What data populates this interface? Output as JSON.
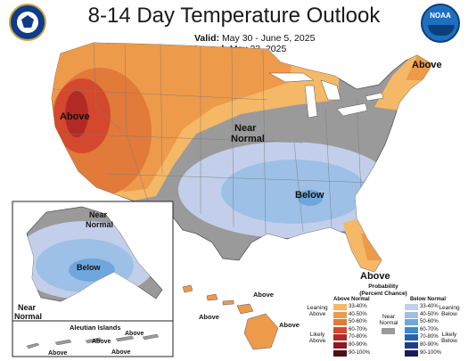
{
  "header": {
    "title": "8-14 Day Temperature Outlook",
    "valid_label": "Valid:",
    "valid_value": "May 30 - June 5, 2025",
    "issued_label": "Issued:",
    "issued_value": "May 22, 2025"
  },
  "logos": {
    "left_seal": "department-of-commerce-seal",
    "right_logo": "NOAA"
  },
  "map_labels": {
    "conus_above_west": "Above",
    "conus_above_northeast": "Above",
    "conus_near_normal_1": "Near",
    "conus_near_normal_2": "Normal",
    "conus_below": "Below",
    "conus_above_florida": "Above",
    "alaska_near_normal_1": "Near",
    "alaska_near_normal_2": "Normal",
    "alaska_below": "Below",
    "alaska_sw_near_1": "Near",
    "alaska_sw_near_2": "Normal",
    "hawaii_above_1": "Above",
    "hawaii_above_2": "Above",
    "hawaii_above_3": "Above",
    "aleutian_title": "Aleutian Islands",
    "aleutian_above_1": "Above",
    "aleutian_above_2": "Above",
    "aleutian_above_3": "Above",
    "aleutian_above_4": "Above"
  },
  "legend": {
    "title_1": "Probability",
    "title_2": "(Percent Chance)",
    "above_header": "Above Normal",
    "below_header": "Below Normal",
    "leaning_above_1": "Leaning",
    "leaning_above_2": "Above",
    "likely_above_1": "Likely",
    "likely_above_2": "Above",
    "leaning_below_1": "Leaning",
    "leaning_below_2": "Below",
    "likely_below_1": "Likely",
    "likely_below_2": "Below",
    "near_normal_1": "Near",
    "near_normal_2": "Normal",
    "above_bins": [
      {
        "label": "33-40%",
        "color": "#f5b867"
      },
      {
        "label": "40-50%",
        "color": "#ee9a4b"
      },
      {
        "label": "50-60%",
        "color": "#e27a3a"
      },
      {
        "label": "60-70%",
        "color": "#d4492d"
      },
      {
        "label": "70-80%",
        "color": "#b32a24"
      },
      {
        "label": "80-90%",
        "color": "#8a1a1f"
      },
      {
        "label": "90-100%",
        "color": "#4e0f15"
      }
    ],
    "below_bins": [
      {
        "label": "33-40%",
        "color": "#c3cfea"
      },
      {
        "label": "40-50%",
        "color": "#9dc0e6"
      },
      {
        "label": "50-60%",
        "color": "#6fa6dc"
      },
      {
        "label": "60-70%",
        "color": "#3f88cc"
      },
      {
        "label": "70-80%",
        "color": "#2563ad"
      },
      {
        "label": "80-90%",
        "color": "#1d3e86"
      },
      {
        "label": "90-100%",
        "color": "#141f55"
      }
    ],
    "near_color": "#9a9a9a"
  },
  "colors": {
    "near_normal": "#9a9a9a",
    "above_33_40": "#f5b867",
    "above_40_50": "#ee9a4b",
    "above_50_60": "#e27a3a",
    "above_60_70": "#d4492d",
    "above_70_80": "#b32a24",
    "below_33_40": "#c3cfea",
    "below_40_50": "#9dc0e6",
    "below_50_60": "#6fa6dc",
    "water": "#ffffff"
  }
}
